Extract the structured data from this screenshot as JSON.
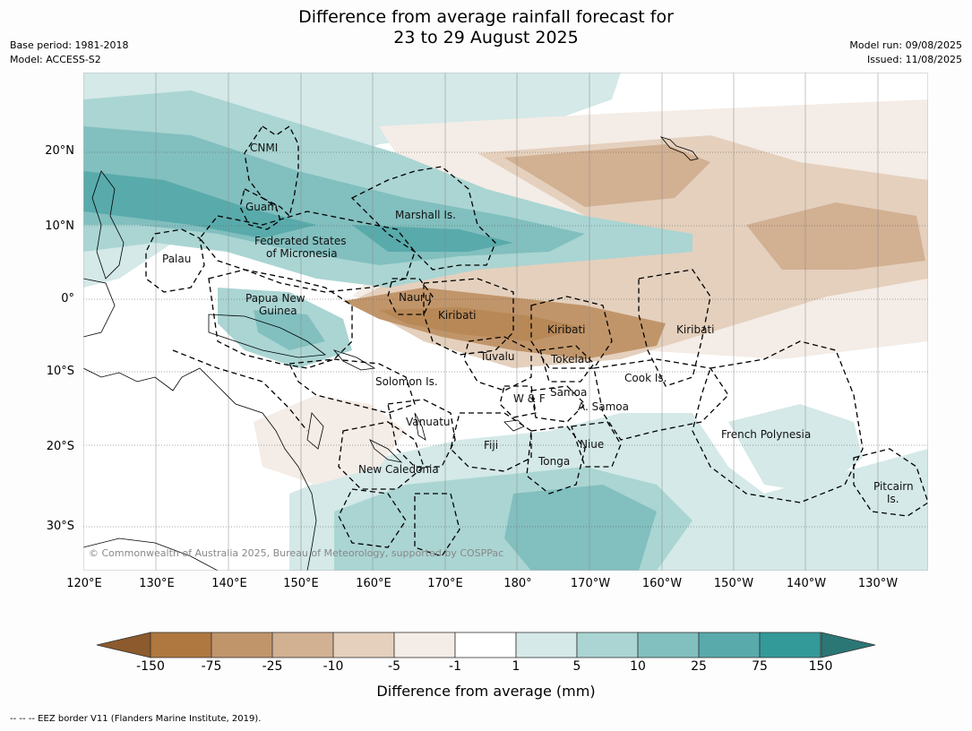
{
  "title": {
    "line1": "Difference from average rainfall forecast for",
    "line2": "23 to 29 August 2025"
  },
  "meta_left": {
    "base_period": "Base period: 1981-2018",
    "model": "Model: ACCESS-S2"
  },
  "meta_right": {
    "model_run": "Model run: 09/08/2025",
    "issued": "Issued: 11/08/2025"
  },
  "lat_labels": [
    "20°N",
    "10°N",
    "0°",
    "10°S",
    "20°S",
    "30°S"
  ],
  "lon_labels": [
    "120°E",
    "130°E",
    "140°E",
    "150°E",
    "160°E",
    "170°E",
    "180°",
    "170°W",
    "160°W",
    "150°W",
    "140°W",
    "130°W"
  ],
  "places": {
    "cnmi": "CNMI",
    "guam": "Guam",
    "marshall": "Marshall Is.",
    "fsm1": "Federated States",
    "fsm2": "of Micronesia",
    "palau": "Palau",
    "png1": "Papua New",
    "png2": "Guinea",
    "nauru": "Nauru",
    "kiribati1": "Kiribati",
    "kiribati2": "Kiribati",
    "kiribati3": "Kiribati",
    "tuvalu": "Tuvalu",
    "tokelau": "Tokelau",
    "cook": "Cook Is.",
    "solomon": "Solomon Is.",
    "samoa": "Samoa",
    "wf": "W & F",
    "asamoa": "A. Samoa",
    "vanuatu": "Vanuatu",
    "fiji": "Fiji",
    "niue": "Niue",
    "tonga": "Tonga",
    "fp": "French Polynesia",
    "newcal": "New Caledonia",
    "pitcairn1": "Pitcairn",
    "pitcairn2": "Is."
  },
  "copyright": "© Commonwealth of Australia 2025, Bureau of Meteorology, supported by COSPPac",
  "colorbar": {
    "label": "Difference from average (mm)",
    "ticks": [
      "-150",
      "-75",
      "-25",
      "-10",
      "-5",
      "-1",
      "1",
      "5",
      "10",
      "25",
      "75",
      "150"
    ],
    "colors": {
      "below_min": "#8c5a2c",
      "b1": "#ae7840",
      "b2": "#c1956a",
      "b3": "#d2b092",
      "b4": "#e4d0bd",
      "b5": "#f4ece6",
      "b6": "#ffffff",
      "b7": "#d4e9e8",
      "b8": "#aad5d3",
      "b9": "#82bfbf",
      "b10": "#59aaab",
      "b11": "#339a99",
      "above_max": "#2b7776"
    }
  },
  "footnote": "--  --  -- EEZ border V11 (Flanders Marine Institute, 2019)."
}
